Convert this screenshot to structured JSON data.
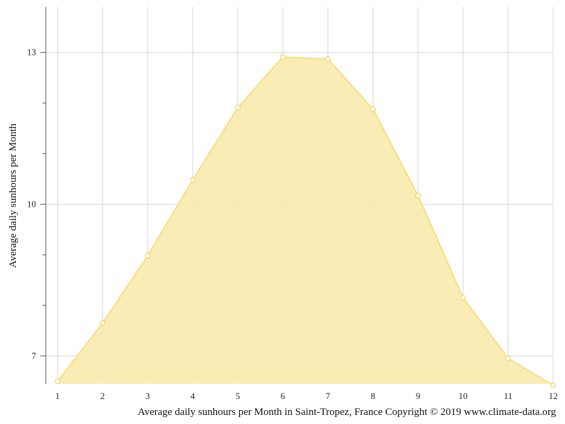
{
  "chart_data": {
    "type": "area",
    "x": [
      1,
      2,
      3,
      4,
      5,
      6,
      7,
      8,
      9,
      10,
      11,
      12
    ],
    "series": [
      {
        "values": [
          6.5,
          7.65,
          8.98,
          10.48,
          11.91,
          12.91,
          12.87,
          11.88,
          10.17,
          8.15,
          6.95,
          6.42
        ]
      }
    ],
    "x_ticks": [
      "1",
      "2",
      "3",
      "4",
      "5",
      "6",
      "7",
      "8",
      "9",
      "10",
      "11",
      "12"
    ],
    "y_ticks": [
      "7",
      "10",
      "13"
    ],
    "xlabel": "Average daily sunhours per Month in Saint-Tropez, France Copyright © 2019 www.climate-data.org",
    "ylabel": "Average daily sunhours per Month",
    "xlim": [
      1,
      12
    ],
    "ylim": [
      6.45,
      13.9
    ],
    "grid": true,
    "fill_color": "#f9eaad",
    "line_color": "#f7e07a",
    "marker_fill": "#ffffff"
  }
}
